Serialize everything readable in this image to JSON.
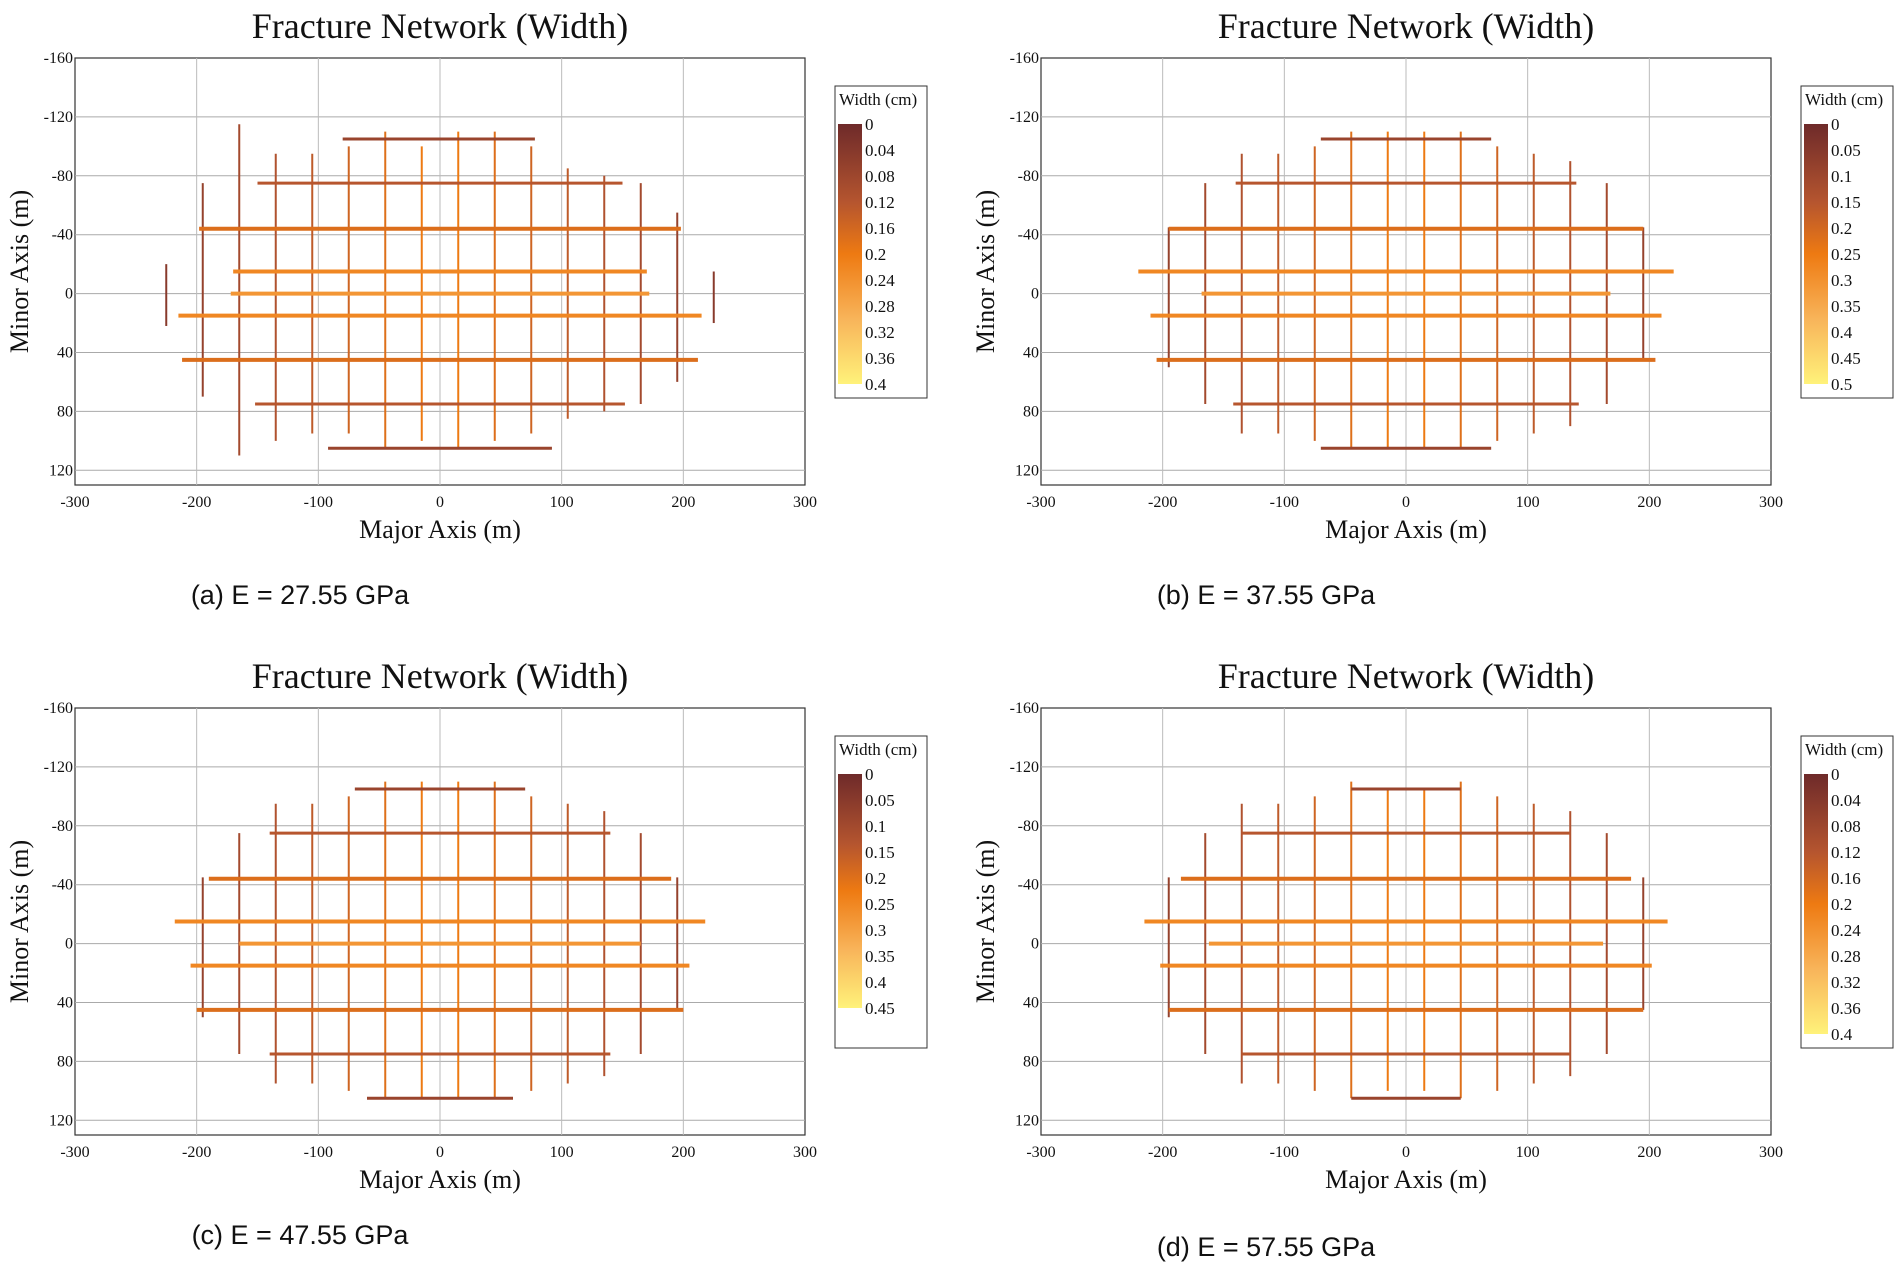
{
  "chart_data": [
    {
      "type": "fracture-network",
      "title": "Fracture Network (Width)",
      "xlabel": "Major Axis (m)",
      "ylabel": "Minor Axis (m)",
      "xlim": [
        -300,
        300
      ],
      "ylim": [
        -160,
        130
      ],
      "xticks": [
        "-300",
        "-200",
        "-100",
        "0",
        "100",
        "200",
        "300"
      ],
      "yticks": [
        "-160",
        "-120",
        "-80",
        "-40",
        "0",
        "40",
        "80",
        "120"
      ],
      "colorbar": {
        "title": "Width (cm)",
        "ticks": [
          "0",
          "0.04",
          "0.08",
          "0.12",
          "0.16",
          "0.2",
          "0.24",
          "0.28",
          "0.32",
          "0.36",
          "0.4"
        ]
      },
      "caption": "(a) E = 27.55 GPa",
      "horizontal_fractures": [
        {
          "y": -105,
          "x": [
            -80,
            78
          ]
        },
        {
          "y": -75,
          "x": [
            -150,
            150
          ]
        },
        {
          "y": -44,
          "x": [
            -198,
            198
          ]
        },
        {
          "y": -15,
          "x": [
            -170,
            170
          ]
        },
        {
          "y": 0,
          "x": [
            -172,
            172
          ]
        },
        {
          "y": 15,
          "x": [
            -215,
            215
          ]
        },
        {
          "y": 45,
          "x": [
            -212,
            212
          ]
        },
        {
          "y": 75,
          "x": [
            -152,
            152
          ]
        },
        {
          "y": 105,
          "x": [
            -92,
            92
          ]
        }
      ],
      "vertical_fractures": [
        {
          "x": -225,
          "y": [
            -20,
            22
          ]
        },
        {
          "x": -195,
          "y": [
            -75,
            70
          ]
        },
        {
          "x": -165,
          "y": [
            -115,
            110
          ]
        },
        {
          "x": -135,
          "y": [
            -95,
            100
          ]
        },
        {
          "x": -105,
          "y": [
            -95,
            95
          ]
        },
        {
          "x": -75,
          "y": [
            -100,
            95
          ]
        },
        {
          "x": -45,
          "y": [
            -110,
            105
          ]
        },
        {
          "x": -15,
          "y": [
            -100,
            100
          ]
        },
        {
          "x": 15,
          "y": [
            -110,
            105
          ]
        },
        {
          "x": 45,
          "y": [
            -110,
            100
          ]
        },
        {
          "x": 75,
          "y": [
            -100,
            95
          ]
        },
        {
          "x": 105,
          "y": [
            -85,
            85
          ]
        },
        {
          "x": 135,
          "y": [
            -80,
            80
          ]
        },
        {
          "x": 165,
          "y": [
            -75,
            75
          ]
        },
        {
          "x": 195,
          "y": [
            -55,
            60
          ]
        },
        {
          "x": 225,
          "y": [
            -15,
            20
          ]
        }
      ]
    },
    {
      "type": "fracture-network",
      "title": "Fracture Network (Width)",
      "xlabel": "Major Axis (m)",
      "ylabel": "Minor Axis (m)",
      "xlim": [
        -300,
        300
      ],
      "ylim": [
        -160,
        130
      ],
      "xticks": [
        "-300",
        "-200",
        "-100",
        "0",
        "100",
        "200",
        "300"
      ],
      "yticks": [
        "-160",
        "-120",
        "-80",
        "-40",
        "0",
        "40",
        "80",
        "120"
      ],
      "colorbar": {
        "title": "Width (cm)",
        "ticks": [
          "0",
          "0.05",
          "0.1",
          "0.15",
          "0.2",
          "0.25",
          "0.3",
          "0.35",
          "0.4",
          "0.45",
          "0.5"
        ]
      },
      "caption": "(b) E = 37.55 GPa",
      "horizontal_fractures": [
        {
          "y": -105,
          "x": [
            -70,
            70
          ]
        },
        {
          "y": -75,
          "x": [
            -140,
            140
          ]
        },
        {
          "y": -44,
          "x": [
            -195,
            195
          ]
        },
        {
          "y": -15,
          "x": [
            -220,
            220
          ]
        },
        {
          "y": 0,
          "x": [
            -168,
            168
          ]
        },
        {
          "y": 15,
          "x": [
            -210,
            210
          ]
        },
        {
          "y": 45,
          "x": [
            -205,
            205
          ]
        },
        {
          "y": 75,
          "x": [
            -142,
            142
          ]
        },
        {
          "y": 105,
          "x": [
            -70,
            70
          ]
        }
      ],
      "vertical_fractures": [
        {
          "x": -195,
          "y": [
            -45,
            50
          ]
        },
        {
          "x": -165,
          "y": [
            -75,
            75
          ]
        },
        {
          "x": -135,
          "y": [
            -95,
            95
          ]
        },
        {
          "x": -105,
          "y": [
            -95,
            95
          ]
        },
        {
          "x": -75,
          "y": [
            -100,
            100
          ]
        },
        {
          "x": -45,
          "y": [
            -110,
            105
          ]
        },
        {
          "x": -15,
          "y": [
            -110,
            105
          ]
        },
        {
          "x": 15,
          "y": [
            -110,
            105
          ]
        },
        {
          "x": 45,
          "y": [
            -110,
            105
          ]
        },
        {
          "x": 75,
          "y": [
            -100,
            100
          ]
        },
        {
          "x": 105,
          "y": [
            -95,
            95
          ]
        },
        {
          "x": 135,
          "y": [
            -90,
            90
          ]
        },
        {
          "x": 165,
          "y": [
            -75,
            75
          ]
        },
        {
          "x": 195,
          "y": [
            -45,
            45
          ]
        }
      ]
    },
    {
      "type": "fracture-network",
      "title": "Fracture Network (Width)",
      "xlabel": "Major Axis (m)",
      "ylabel": "Minor Axis (m)",
      "xlim": [
        -300,
        300
      ],
      "ylim": [
        -160,
        130
      ],
      "xticks": [
        "-300",
        "-200",
        "-100",
        "0",
        "100",
        "200",
        "300"
      ],
      "yticks": [
        "-160",
        "-120",
        "-80",
        "-40",
        "0",
        "40",
        "80",
        "120"
      ],
      "colorbar": {
        "title": "Width (cm)",
        "ticks": [
          "0",
          "0.05",
          "0.1",
          "0.15",
          "0.2",
          "0.25",
          "0.3",
          "0.35",
          "0.4",
          "0.45"
        ]
      },
      "caption": "(c) E = 47.55 GPa",
      "horizontal_fractures": [
        {
          "y": -105,
          "x": [
            -70,
            70
          ]
        },
        {
          "y": -75,
          "x": [
            -140,
            140
          ]
        },
        {
          "y": -44,
          "x": [
            -190,
            190
          ]
        },
        {
          "y": -15,
          "x": [
            -218,
            218
          ]
        },
        {
          "y": 0,
          "x": [
            -165,
            165
          ]
        },
        {
          "y": 15,
          "x": [
            -205,
            205
          ]
        },
        {
          "y": 45,
          "x": [
            -200,
            200
          ]
        },
        {
          "y": 75,
          "x": [
            -140,
            140
          ]
        },
        {
          "y": 105,
          "x": [
            -60,
            60
          ]
        }
      ],
      "vertical_fractures": [
        {
          "x": -195,
          "y": [
            -45,
            50
          ]
        },
        {
          "x": -165,
          "y": [
            -75,
            75
          ]
        },
        {
          "x": -135,
          "y": [
            -95,
            95
          ]
        },
        {
          "x": -105,
          "y": [
            -95,
            95
          ]
        },
        {
          "x": -75,
          "y": [
            -100,
            100
          ]
        },
        {
          "x": -45,
          "y": [
            -110,
            105
          ]
        },
        {
          "x": -15,
          "y": [
            -110,
            105
          ]
        },
        {
          "x": 15,
          "y": [
            -110,
            105
          ]
        },
        {
          "x": 45,
          "y": [
            -110,
            105
          ]
        },
        {
          "x": 75,
          "y": [
            -100,
            100
          ]
        },
        {
          "x": 105,
          "y": [
            -95,
            95
          ]
        },
        {
          "x": 135,
          "y": [
            -90,
            90
          ]
        },
        {
          "x": 165,
          "y": [
            -75,
            75
          ]
        },
        {
          "x": 195,
          "y": [
            -45,
            45
          ]
        }
      ]
    },
    {
      "type": "fracture-network",
      "title": "Fracture Network (Width)",
      "xlabel": "Major Axis (m)",
      "ylabel": "Minor Axis (m)",
      "xlim": [
        -300,
        300
      ],
      "ylim": [
        -160,
        130
      ],
      "xticks": [
        "-300",
        "-200",
        "-100",
        "0",
        "100",
        "200",
        "300"
      ],
      "yticks": [
        "-160",
        "-120",
        "-80",
        "-40",
        "0",
        "40",
        "80",
        "120"
      ],
      "colorbar": {
        "title": "Width (cm)",
        "ticks": [
          "0",
          "0.04",
          "0.08",
          "0.12",
          "0.16",
          "0.2",
          "0.24",
          "0.28",
          "0.32",
          "0.36",
          "0.4"
        ]
      },
      "caption": "(d) E = 57.55 GPa",
      "horizontal_fractures": [
        {
          "y": -105,
          "x": [
            -45,
            45
          ]
        },
        {
          "y": -75,
          "x": [
            -135,
            135
          ]
        },
        {
          "y": -44,
          "x": [
            -185,
            185
          ]
        },
        {
          "y": -15,
          "x": [
            -215,
            215
          ]
        },
        {
          "y": 0,
          "x": [
            -162,
            162
          ]
        },
        {
          "y": 15,
          "x": [
            -202,
            202
          ]
        },
        {
          "y": 45,
          "x": [
            -195,
            195
          ]
        },
        {
          "y": 75,
          "x": [
            -135,
            135
          ]
        },
        {
          "y": 105,
          "x": [
            -45,
            45
          ]
        }
      ],
      "vertical_fractures": [
        {
          "x": -195,
          "y": [
            -45,
            50
          ]
        },
        {
          "x": -165,
          "y": [
            -75,
            75
          ]
        },
        {
          "x": -135,
          "y": [
            -95,
            95
          ]
        },
        {
          "x": -105,
          "y": [
            -95,
            95
          ]
        },
        {
          "x": -75,
          "y": [
            -100,
            100
          ]
        },
        {
          "x": -45,
          "y": [
            -110,
            105
          ]
        },
        {
          "x": -15,
          "y": [
            -105,
            100
          ]
        },
        {
          "x": 15,
          "y": [
            -105,
            100
          ]
        },
        {
          "x": 45,
          "y": [
            -110,
            105
          ]
        },
        {
          "x": 75,
          "y": [
            -100,
            100
          ]
        },
        {
          "x": 105,
          "y": [
            -95,
            95
          ]
        },
        {
          "x": 135,
          "y": [
            -90,
            90
          ]
        },
        {
          "x": 165,
          "y": [
            -75,
            75
          ]
        },
        {
          "x": 195,
          "y": [
            -45,
            45
          ]
        }
      ]
    }
  ]
}
